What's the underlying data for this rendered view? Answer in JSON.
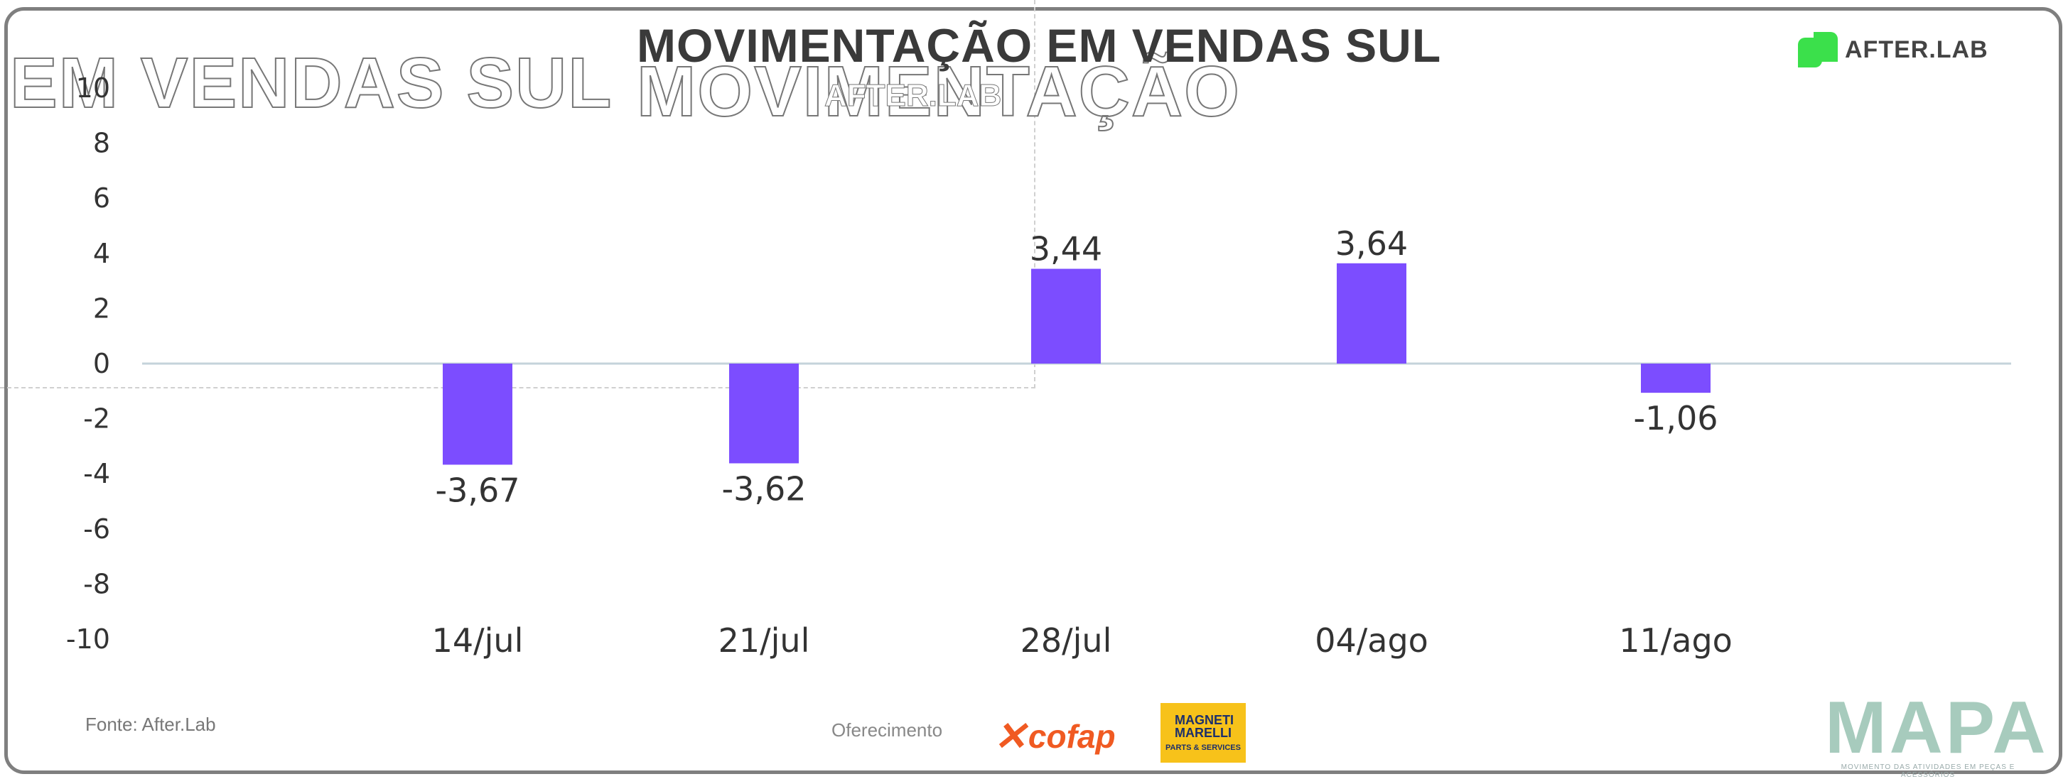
{
  "brand": {
    "name": "AFTER.LAB"
  },
  "footer": {
    "source": "Fonte: After.Lab",
    "sponsor_label": "Oferecimento",
    "sponsors": [
      "cofap",
      "MAGNETI MARELLI",
      "PARTS & SERVICES"
    ],
    "mapa_name": "MAPA",
    "mapa_tagline": "MOVIMENTO DAS ATIVIDADES EM PEÇAS E ACESSÓRIOS"
  },
  "ghosts": {
    "left": "EM VENDAS SUL",
    "mid": "MOVIMENTAÇÃO",
    "small": "AFTER.LAB"
  },
  "colors": {
    "bar": "#7c4dff",
    "zero_line": "#c5d3db",
    "text": "#333333",
    "brand_green": "#3be04b"
  },
  "chart_data": {
    "type": "bar",
    "title": "MOVIMENTAÇÃO EM VENDAS SUL",
    "categories": [
      "14/jul",
      "21/jul",
      "28/jul",
      "04/ago",
      "11/ago"
    ],
    "values": [
      -3.67,
      -3.62,
      3.44,
      3.64,
      -1.06
    ],
    "data_labels": [
      "-3,67",
      "-3,62",
      "3,44",
      "3,64",
      "-1,06"
    ],
    "yticks": [
      "10",
      "8",
      "6",
      "4",
      "2",
      "0",
      "-2",
      "-4",
      "-6",
      "-8",
      "-10"
    ],
    "ylim": [
      -10,
      10
    ],
    "grid": false,
    "legend": "none"
  }
}
